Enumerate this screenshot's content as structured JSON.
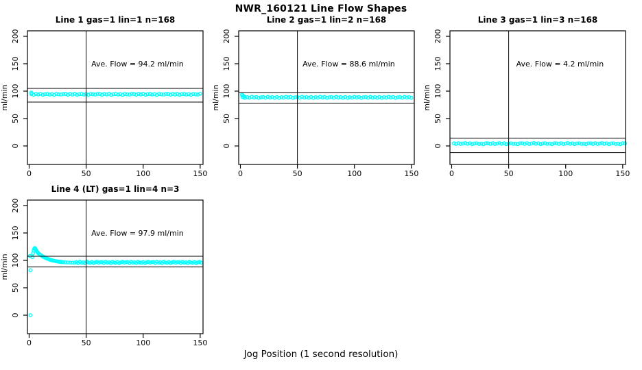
{
  "page": {
    "title": "NWR_160121  Line Flow Shapes",
    "xlabel": "Jog Position (1 second resolution)",
    "background": "#ffffff"
  },
  "chart_data": {
    "type": "scatter",
    "title": "NWR_160121  Line Flow Shapes",
    "xlabel": "Jog Position (1 second resolution)",
    "ylabel": "ml/min",
    "marker": "open-circle",
    "point_color": "#00ffff",
    "line_color": "#000000",
    "grid": false,
    "x_ticks": [
      0,
      50,
      100,
      150
    ],
    "y_ticks": [
      0,
      50,
      100,
      150,
      200
    ],
    "xlim": [
      -1.5,
      152.5
    ],
    "ylim": [
      -33.75,
      210
    ],
    "annotation_anchor": {
      "x": 95,
      "y": 150
    },
    "panels": [
      {
        "id": "line1",
        "title": "Line 1 gas=1 lin=1 n=168",
        "annotation": "Ave. Flow =  94.2  ml/min",
        "ave_flow": 94.2,
        "n": 168,
        "vline_x": 50,
        "hlines": [
          105,
          80
        ],
        "segments": [
          {
            "points": [
              [
                2,
                97.2
              ]
            ]
          },
          {
            "x_start": 2,
            "x_step": 2,
            "n": 75,
            "mean": 94.2,
            "jitter": [
              0.5,
              -0.7,
              0.8,
              -0.3,
              0.9,
              -0.8,
              0.2,
              0.6,
              -0.5,
              0.3,
              -0.9,
              0.7,
              0.0,
              -0.4,
              0.8
            ]
          }
        ]
      },
      {
        "id": "line2",
        "title": "Line 2 gas=1 lin=2 n=168",
        "annotation": "Ave. Flow =  88.6  ml/min",
        "ave_flow": 88.6,
        "n": 168,
        "vline_x": 50,
        "hlines": [
          97,
          78
        ],
        "segments": [
          {
            "points": [
              [
                1.5,
                93.5
              ],
              [
                2.5,
                91.5
              ],
              [
                3.5,
                90.2
              ]
            ]
          },
          {
            "x_start": 2,
            "x_step": 2,
            "n": 75,
            "mean": 88.6,
            "jitter": [
              0.6,
              -0.8,
              0.3,
              -0.5,
              0.9,
              -0.2,
              0.7,
              -0.9,
              0.1,
              0.5,
              -0.6,
              0.9,
              -0.3,
              0.4,
              -0.7
            ]
          }
        ]
      },
      {
        "id": "line3",
        "title": "Line 3 gas=1 lin=3 n=168",
        "annotation": "Ave. Flow =  4.2  ml/min",
        "ave_flow": 4.2,
        "n": 168,
        "vline_x": 50,
        "hlines": [
          14,
          -12
        ],
        "segments": [
          {
            "x_start": 2,
            "x_step": 2,
            "n": 76,
            "mean": 4.2,
            "jitter": [
              0.5,
              -0.4,
              0.8,
              -0.6,
              0.2,
              0.9,
              -0.2,
              0.5,
              -0.8,
              0.3,
              0.7,
              -0.5,
              0.1,
              -0.9,
              0.6
            ]
          }
        ]
      },
      {
        "id": "line4",
        "title": "Line 4 (LT) gas=1 lin=4 n=3",
        "annotation": "Ave. Flow =  97.9  ml/min",
        "ave_flow": 97.9,
        "n": 3,
        "vline_x": 50,
        "hlines": [
          107.5,
          88
        ],
        "segments": [
          {
            "points": [
              [
                0.7,
                108
              ],
              [
                1.2,
                82
              ],
              [
                1.2,
                0
              ],
              [
                3,
                106
              ],
              [
                3.5,
                113
              ],
              [
                4,
                118
              ],
              [
                4.5,
                121
              ],
              [
                5,
                122.5
              ],
              [
                5.5,
                121.5
              ],
              [
                6,
                119.5
              ],
              [
                6.5,
                117.5
              ],
              [
                7,
                116
              ],
              [
                7.5,
                114.5
              ],
              [
                8,
                113
              ],
              [
                9,
                111.5
              ],
              [
                10,
                110
              ],
              [
                11,
                108.5
              ],
              [
                12,
                107
              ],
              [
                13,
                106
              ],
              [
                14,
                105
              ],
              [
                15,
                104
              ],
              [
                16,
                103
              ],
              [
                17,
                102.2
              ],
              [
                18,
                101.5
              ],
              [
                19,
                100.8
              ],
              [
                20,
                100.2
              ],
              [
                21,
                99.7
              ],
              [
                22,
                99.2
              ],
              [
                23,
                98.8
              ],
              [
                24,
                98.4
              ],
              [
                25,
                98
              ],
              [
                26,
                97.7
              ],
              [
                27,
                97.4
              ],
              [
                28,
                97.1
              ],
              [
                29,
                96.9
              ],
              [
                30,
                96.7
              ],
              [
                32,
                96.4
              ],
              [
                34,
                96.2
              ],
              [
                36,
                96.0
              ],
              [
                38,
                95.9
              ],
              [
                40,
                95.8
              ]
            ]
          },
          {
            "x_start": 41.5,
            "x_step": 1.5,
            "n": 74,
            "mean": 96,
            "jitter": [
              0.9,
              -0.7,
              1.2,
              -0.3,
              0.5,
              -1.0,
              1.3,
              0.1,
              -0.5,
              1.0,
              -0.9,
              0.4,
              1.2,
              -0.2,
              0.7
            ]
          }
        ]
      }
    ]
  }
}
